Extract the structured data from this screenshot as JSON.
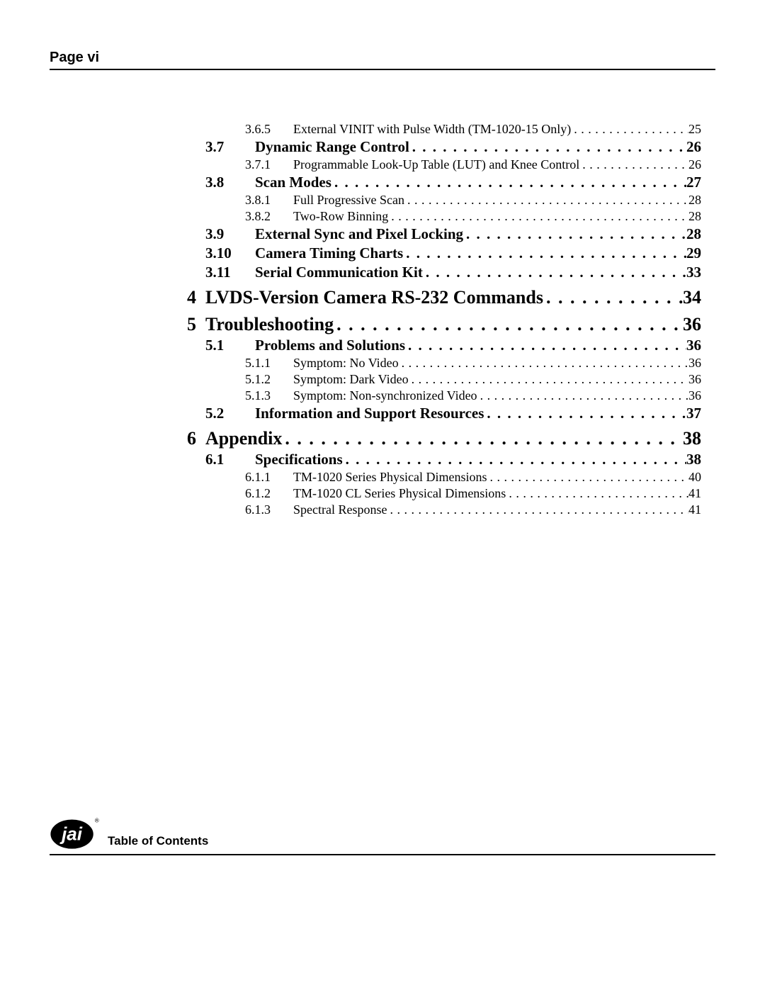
{
  "header": {
    "label": "Page vi"
  },
  "footer": {
    "caption": "Table of Contents",
    "logo_name": "jai-logo"
  },
  "colors": {
    "text": "#000000",
    "bg": "#ffffff",
    "rule": "#000000"
  },
  "fonts": {
    "serif": "Times New Roman",
    "sans": "Arial",
    "l1_size_pt": 20,
    "l2_size_pt": 16,
    "l3_size_pt": 13
  },
  "toc": [
    {
      "level": 3,
      "num": "3.6.5",
      "title": "External VINIT with Pulse Width (TM-1020-15 Only)",
      "page": "25"
    },
    {
      "level": 2,
      "num": "3.7",
      "title": "Dynamic Range Control",
      "page": "26"
    },
    {
      "level": 3,
      "num": "3.7.1",
      "title": "Programmable Look-Up Table (LUT) and Knee Control",
      "page": "26"
    },
    {
      "level": 2,
      "num": "3.8",
      "title": "Scan Modes",
      "page": "27"
    },
    {
      "level": 3,
      "num": "3.8.1",
      "title": "Full Progressive Scan",
      "page": "28"
    },
    {
      "level": 3,
      "num": "3.8.2",
      "title": "Two-Row Binning",
      "page": "28"
    },
    {
      "level": 2,
      "num": "3.9",
      "title": "External Sync and Pixel Locking",
      "page": "28"
    },
    {
      "level": 2,
      "num": "3.10",
      "title": "Camera Timing Charts",
      "page": "29"
    },
    {
      "level": 2,
      "num": "3.11",
      "title": "Serial Communication Kit",
      "page": "33"
    },
    {
      "level": 1,
      "num": "4",
      "title": "LVDS-Version Camera RS-232 Commands",
      "page": "34"
    },
    {
      "level": 1,
      "num": "5",
      "title": "Troubleshooting",
      "page": "36"
    },
    {
      "level": 2,
      "num": "5.1",
      "title": "Problems and Solutions",
      "page": "36"
    },
    {
      "level": 3,
      "num": "5.1.1",
      "title": "Symptom: No Video",
      "page": "36"
    },
    {
      "level": 3,
      "num": "5.1.2",
      "title": "Symptom: Dark Video",
      "page": "36"
    },
    {
      "level": 3,
      "num": "5.1.3",
      "title": "Symptom: Non-synchronized Video",
      "page": "36"
    },
    {
      "level": 2,
      "num": "5.2",
      "title": "Information and Support Resources",
      "page": "37"
    },
    {
      "level": 1,
      "num": "6",
      "title": "Appendix",
      "page": "38"
    },
    {
      "level": 2,
      "num": "6.1",
      "title": "Specifications",
      "page": "38"
    },
    {
      "level": 3,
      "num": "6.1.1",
      "title": "TM-1020 Series Physical Dimensions",
      "page": "40"
    },
    {
      "level": 3,
      "num": "6.1.2",
      "title": "TM-1020 CL Series Physical Dimensions",
      "page": "41"
    },
    {
      "level": 3,
      "num": "6.1.3",
      "title": "Spectral Response",
      "page": "41"
    }
  ]
}
